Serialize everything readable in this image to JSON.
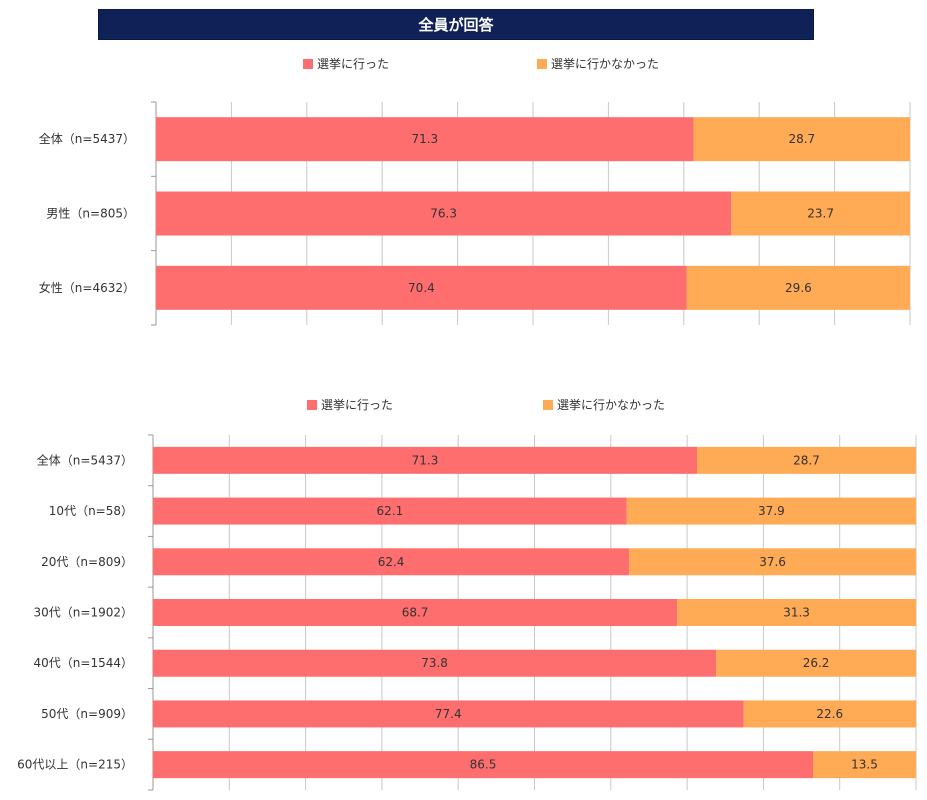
{
  "title": "全員が回答",
  "colors": {
    "went": "#ff6e6e",
    "not_went": "#ffaa55",
    "grid": "#c8c8c8",
    "axis": "#999999",
    "text": "#333333"
  },
  "chart_data": [
    {
      "type": "bar",
      "orientation": "horizontal",
      "stacked": "percent",
      "legend": [
        "選挙に行った",
        "選挙に行かなかった"
      ],
      "legend_position": "top",
      "categories": [
        "全体（n=5437）",
        "男性（n=805）",
        "女性（n=4632）"
      ],
      "series": [
        {
          "name": "選挙に行った",
          "values": [
            71.3,
            76.3,
            70.4
          ]
        },
        {
          "name": "選挙に行かなかった",
          "values": [
            28.7,
            23.7,
            29.6
          ]
        }
      ],
      "xlim": [
        0,
        100
      ],
      "grid": true
    },
    {
      "type": "bar",
      "orientation": "horizontal",
      "stacked": "percent",
      "legend": [
        "選挙に行った",
        "選挙に行かなかった"
      ],
      "legend_position": "top",
      "categories": [
        "全体（n=5437）",
        "10代（n=58）",
        "20代（n=809）",
        "30代（n=1902）",
        "40代（n=1544）",
        "50代（n=909）",
        "60代以上（n=215）"
      ],
      "series": [
        {
          "name": "選挙に行った",
          "values": [
            71.3,
            62.1,
            62.4,
            68.7,
            73.8,
            77.4,
            86.5
          ]
        },
        {
          "name": "選挙に行かなかった",
          "values": [
            28.7,
            37.9,
            37.6,
            31.3,
            26.2,
            22.6,
            13.5
          ]
        }
      ],
      "xlim": [
        0,
        100
      ],
      "grid": true
    }
  ]
}
